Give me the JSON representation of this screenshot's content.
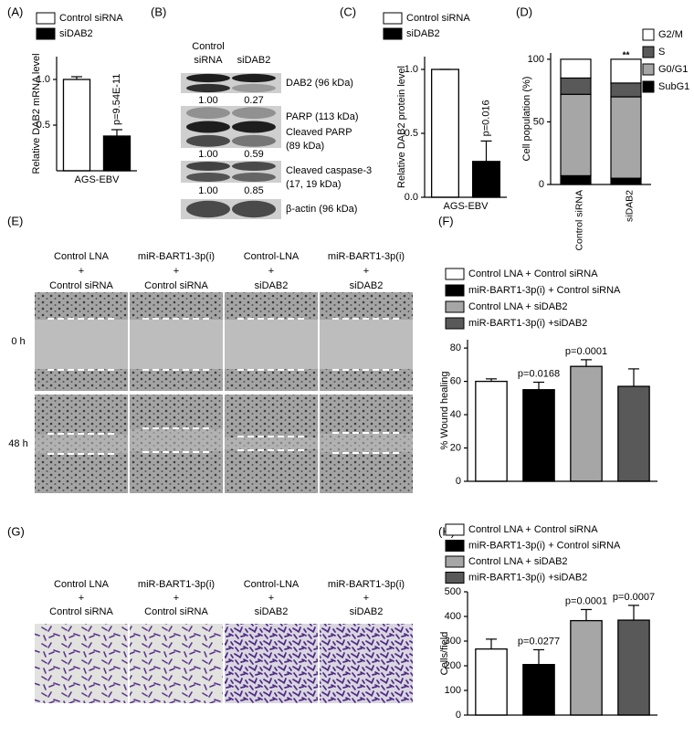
{
  "chart_data": [
    {
      "type": "bar",
      "panel": "(A)",
      "y_label": "Relative DAB2 mRNA level",
      "categories": [
        "AGS-EBV"
      ],
      "series": [
        {
          "name": "Control siRNA",
          "color": "#ffffff",
          "values": [
            1.0
          ],
          "errors": [
            0.03
          ]
        },
        {
          "name": "siDAB2",
          "color": "#000000",
          "values": [
            0.38
          ],
          "errors": [
            0.07
          ],
          "annotation": "p=9.54E-11"
        }
      ],
      "ylim": [
        0,
        1.25
      ],
      "yticks": [
        0.5,
        {
          "value": 1.0,
          "label": "1.0"
        }
      ]
    },
    {
      "type": "bar",
      "panel": "(C)",
      "y_label": "Relative DAB2 protein level",
      "categories": [
        "AGS-EBV"
      ],
      "series": [
        {
          "name": "Control siRNA",
          "color": "#ffffff",
          "values": [
            1.0
          ],
          "errors": [
            0
          ]
        },
        {
          "name": "siDAB2",
          "color": "#000000",
          "values": [
            0.28
          ],
          "errors": [
            0.16
          ],
          "annotation": "p=0.016"
        }
      ],
      "ylim": [
        0,
        1.1
      ],
      "yticks": [
        {
          "value": 0.0,
          "label": "0.0"
        },
        0.5,
        {
          "value": 1.0,
          "label": "1.0"
        }
      ]
    },
    {
      "type": "stacked",
      "panel": "(D)",
      "y_label": "Cell population (%)",
      "categories": [
        "Control siRNA",
        "siDAB2"
      ],
      "series": [
        {
          "name": "SubG1",
          "color": "#000000",
          "values": [
            7,
            5
          ],
          "annotations": [
            null,
            "**"
          ]
        },
        {
          "name": "G0/G1",
          "color": "#a6a6a6",
          "values": [
            65,
            65
          ],
          "annotations": [
            null,
            "**"
          ]
        },
        {
          "name": "S",
          "color": "#595959",
          "values": [
            13,
            11
          ],
          "annotations": [
            null,
            "**"
          ]
        },
        {
          "name": "G2/M",
          "color": "#ffffff",
          "values": [
            15,
            19
          ],
          "annotations": [
            null,
            "**"
          ]
        }
      ],
      "ylim": [
        0,
        105
      ],
      "yticks": [
        0,
        50,
        100
      ]
    },
    {
      "type": "bar",
      "panel": "(F)",
      "y_label": "% Wound healing",
      "categories": [
        null
      ],
      "series": [
        {
          "name": "Control LNA + Control siRNA",
          "color": "#ffffff",
          "values": [
            60
          ],
          "errors": [
            1.5
          ]
        },
        {
          "name": "miR-BART1-3p(i) + Control siRNA",
          "color": "#000000",
          "values": [
            55
          ],
          "errors": [
            4.5
          ],
          "annotation": "p=0.0168"
        },
        {
          "name": "Control LNA + siDAB2",
          "color": "#a6a6a6",
          "values": [
            69
          ],
          "errors": [
            4
          ],
          "annotation": "p=0.0001"
        },
        {
          "name": "miR-BART1-3p(i) +siDAB2",
          "color": "#595959",
          "values": [
            57
          ],
          "errors": [
            10.5
          ]
        }
      ],
      "ylim": [
        0,
        85
      ],
      "yticks": [
        0,
        20,
        40,
        60,
        80
      ]
    },
    {
      "type": "bar",
      "panel": "(H)",
      "y_label": "Cells/field",
      "categories": [
        null
      ],
      "series": [
        {
          "name": "Control LNA + Control siRNA",
          "color": "#ffffff",
          "values": [
            268
          ],
          "errors": [
            40
          ]
        },
        {
          "name": "miR-BART1-3p(i) + Control siRNA",
          "color": "#000000",
          "values": [
            205
          ],
          "errors": [
            60
          ],
          "annotation": "p=0.0277"
        },
        {
          "name": "Control LNA + siDAB2",
          "color": "#a6a6a6",
          "values": [
            383
          ],
          "errors": [
            45
          ],
          "annotation": "p=0.0001"
        },
        {
          "name": "miR-BART1-3p(i) +siDAB2",
          "color": "#595959",
          "values": [
            385
          ],
          "errors": [
            60
          ],
          "annotation": "p=0.0007"
        }
      ],
      "ylim": [
        0,
        500
      ],
      "yticks": [
        0,
        100,
        200,
        300,
        400,
        500
      ]
    }
  ],
  "blot": {
    "panel": "(B)",
    "columns": [
      [
        "Control",
        "siRNA"
      ],
      [
        "siDAB2"
      ]
    ],
    "bands": [
      {
        "label": [
          "DAB2 (96 kDa)"
        ],
        "ratios": [
          "1.00",
          "0.27"
        ]
      },
      {
        "label": [
          "PARP (113 kDa)",
          "Cleaved PARP",
          "(89 kDa)"
        ],
        "ratios": [
          "1.00",
          "0.59"
        ]
      },
      {
        "label": [
          "Cleaved  caspase-3",
          "(17, 19 kDa)"
        ],
        "ratios": [
          "1.00",
          "0.85"
        ]
      },
      {
        "label": [
          "β-actin (96 kDa)"
        ]
      }
    ]
  },
  "wound": {
    "panel": "(E)",
    "rows": [
      "0 h",
      "48 h"
    ],
    "columns": [
      [
        "Control LNA",
        "+",
        "Control siRNA"
      ],
      [
        "miR-BART1-3p(i)",
        "+",
        "Control siRNA"
      ],
      [
        "Control-LNA",
        "+",
        "siDAB2"
      ],
      [
        "miR-BART1-3p(i)",
        "+",
        "siDAB2"
      ]
    ]
  },
  "invasion": {
    "panel": "(G)",
    "columns": [
      [
        "Control LNA",
        "+",
        "Control siRNA"
      ],
      [
        "miR-BART1-3p(i)",
        "+",
        "Control siRNA"
      ],
      [
        "Control-LNA",
        "+",
        "siDAB2"
      ],
      [
        "miR-BART1-3p(i)",
        "+",
        "siDAB2"
      ]
    ]
  }
}
